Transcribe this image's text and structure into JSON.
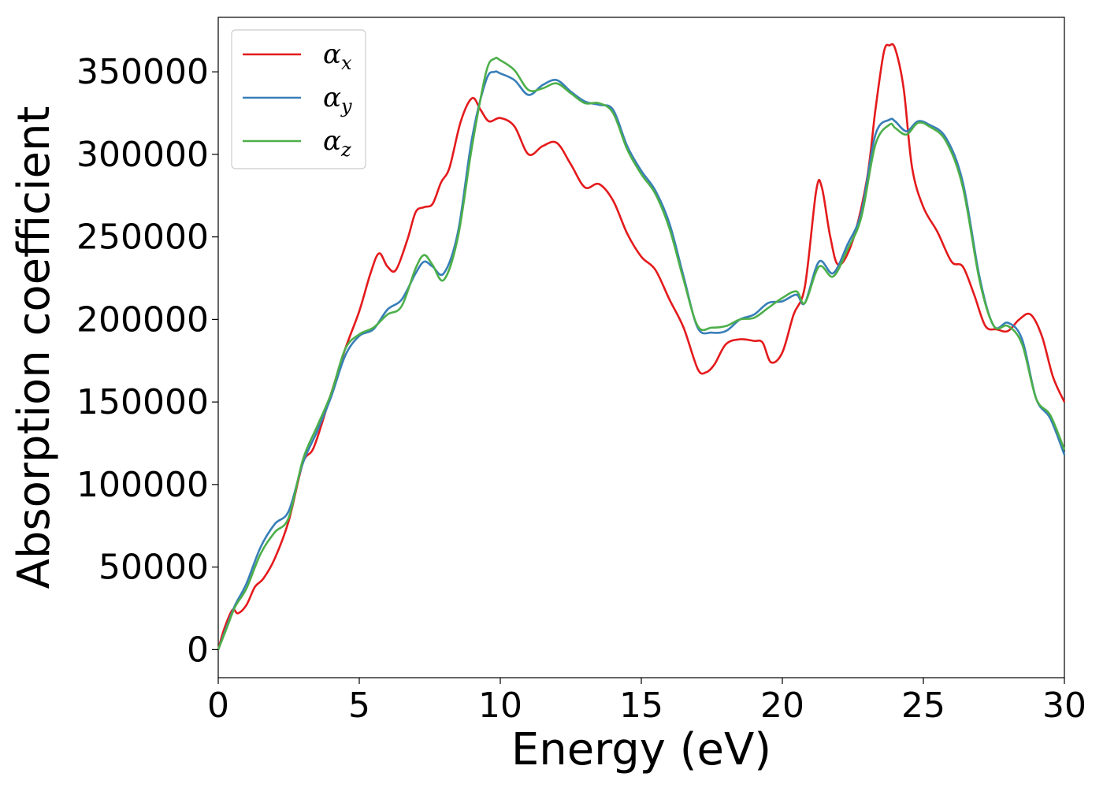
{
  "chart_data": {
    "type": "line",
    "title": "",
    "xlabel": "Energy (eV)",
    "ylabel": "Absorption coefficient",
    "xlim": [
      0,
      30
    ],
    "ylim": [
      -17000,
      383000
    ],
    "xticks": [
      0,
      5,
      10,
      15,
      20,
      25,
      30
    ],
    "yticks": [
      0,
      50000,
      100000,
      150000,
      200000,
      250000,
      300000,
      350000
    ],
    "grid": false,
    "legend_position": "top-left",
    "series": [
      {
        "name": "α",
        "subscript": "x",
        "color": "#e41a1c",
        "x": [
          0,
          0.2,
          0.5,
          0.7,
          1.0,
          1.3,
          1.6,
          2.0,
          2.5,
          3.0,
          3.4,
          4.0,
          4.5,
          5.0,
          5.4,
          5.7,
          6.0,
          6.3,
          6.7,
          7.0,
          7.3,
          7.6,
          7.9,
          8.2,
          8.6,
          9.0,
          9.3,
          9.6,
          10.0,
          10.5,
          11.0,
          11.5,
          12.0,
          12.5,
          13.0,
          13.5,
          14.0,
          14.5,
          15.0,
          15.5,
          16.0,
          16.5,
          17.0,
          17.3,
          17.6,
          18.0,
          18.5,
          19.0,
          19.3,
          19.6,
          20.0,
          20.4,
          20.8,
          21.2,
          21.4,
          21.7,
          22.0,
          22.5,
          23.0,
          23.3,
          23.6,
          23.8,
          24.0,
          24.3,
          24.6,
          25.0,
          25.5,
          26.0,
          26.4,
          26.8,
          27.2,
          27.6,
          28.0,
          28.4,
          28.8,
          29.2,
          29.6,
          30.0
        ],
        "y": [
          0,
          12000,
          24000,
          22000,
          27000,
          38000,
          43000,
          55000,
          78000,
          113000,
          123000,
          155000,
          182000,
          205000,
          228000,
          240000,
          232000,
          230000,
          248000,
          265000,
          268000,
          270000,
          283000,
          292000,
          320000,
          334000,
          327000,
          320000,
          322000,
          317000,
          300000,
          305000,
          307000,
          294000,
          280000,
          282000,
          272000,
          252000,
          238000,
          230000,
          212000,
          195000,
          170000,
          168000,
          173000,
          185000,
          188000,
          187000,
          186000,
          174000,
          180000,
          203000,
          220000,
          278000,
          280000,
          250000,
          233000,
          248000,
          285000,
          327000,
          362000,
          366000,
          364000,
          340000,
          292000,
          268000,
          253000,
          235000,
          232000,
          215000,
          196000,
          194000,
          193000,
          200000,
          203000,
          190000,
          165000,
          150000
        ]
      },
      {
        "name": "α",
        "subscript": "y",
        "color": "#377eb8",
        "x": [
          0,
          0.3,
          0.6,
          1.0,
          1.5,
          2.0,
          2.5,
          3.0,
          3.5,
          4.0,
          4.5,
          5.0,
          5.5,
          6.0,
          6.5,
          7.0,
          7.3,
          7.6,
          8.0,
          8.5,
          9.0,
          9.5,
          9.8,
          10.0,
          10.5,
          11.0,
          11.5,
          12.0,
          12.5,
          13.0,
          13.5,
          14.0,
          14.5,
          15.0,
          15.5,
          16.0,
          16.5,
          17.0,
          17.5,
          18.0,
          18.5,
          19.0,
          19.5,
          20.0,
          20.5,
          20.8,
          21.3,
          21.8,
          22.3,
          22.8,
          23.3,
          23.8,
          24.0,
          24.4,
          24.8,
          25.2,
          25.8,
          26.4,
          27.0,
          27.5,
          28.0,
          28.5,
          29.0,
          29.5,
          30.0
        ],
        "y": [
          0,
          14000,
          27000,
          40000,
          62000,
          76000,
          84000,
          113000,
          132000,
          153000,
          178000,
          190000,
          194000,
          206000,
          212000,
          228000,
          235000,
          232000,
          228000,
          253000,
          310000,
          345000,
          350000,
          349000,
          345000,
          336000,
          342000,
          345000,
          338000,
          332000,
          330000,
          327000,
          305000,
          290000,
          278000,
          258000,
          226000,
          195000,
          192000,
          193000,
          200000,
          203000,
          210000,
          211000,
          215000,
          210000,
          235000,
          228000,
          245000,
          265000,
          312000,
          321000,
          320000,
          314000,
          320000,
          318000,
          310000,
          283000,
          225000,
          196000,
          198000,
          188000,
          152000,
          140000,
          118000
        ]
      },
      {
        "name": "α",
        "subscript": "z",
        "color": "#4daf4a",
        "x": [
          0,
          0.3,
          0.6,
          1.0,
          1.5,
          2.0,
          2.5,
          3.0,
          3.5,
          4.0,
          4.5,
          5.0,
          5.5,
          6.0,
          6.5,
          7.0,
          7.3,
          7.6,
          8.0,
          8.5,
          9.0,
          9.5,
          9.8,
          10.0,
          10.5,
          11.0,
          11.5,
          12.0,
          12.5,
          13.0,
          13.5,
          14.0,
          14.5,
          15.0,
          15.5,
          16.0,
          16.5,
          17.0,
          17.5,
          18.0,
          18.5,
          19.0,
          19.5,
          20.0,
          20.5,
          20.8,
          21.3,
          21.8,
          22.3,
          22.8,
          23.3,
          23.8,
          24.0,
          24.4,
          24.8,
          25.2,
          25.8,
          26.4,
          27.0,
          27.5,
          28.0,
          28.5,
          29.0,
          29.5,
          30.0
        ],
        "y": [
          0,
          13000,
          26000,
          37000,
          58000,
          71000,
          80000,
          115000,
          135000,
          155000,
          182000,
          191000,
          195000,
          203000,
          208000,
          231000,
          239000,
          233000,
          224000,
          250000,
          305000,
          350000,
          358000,
          357000,
          351000,
          339000,
          340000,
          343000,
          337000,
          331000,
          331000,
          325000,
          303000,
          288000,
          276000,
          255000,
          224000,
          196000,
          195000,
          196000,
          200000,
          201000,
          207000,
          213000,
          217000,
          210000,
          232000,
          226000,
          242000,
          262000,
          306000,
          318000,
          316000,
          312000,
          319000,
          317000,
          308000,
          280000,
          223000,
          196000,
          196000,
          185000,
          152000,
          142000,
          121000
        ]
      }
    ]
  }
}
